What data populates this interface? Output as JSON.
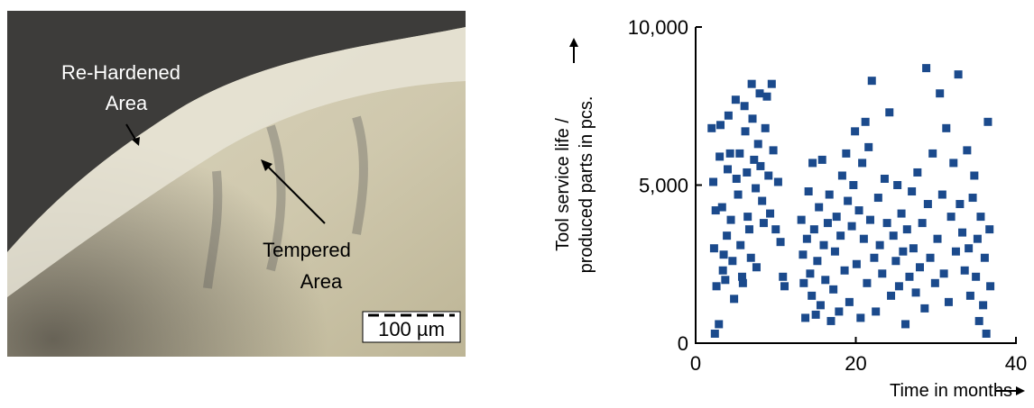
{
  "micrograph": {
    "labels": [
      "Re-Hardened",
      "Area",
      "Tempered",
      "Area"
    ],
    "scale_bar": "100 µm"
  },
  "chart_data": {
    "type": "scatter",
    "color": "#1b4a8c",
    "xlabel": "Time in months",
    "ylabel": [
      "Tool service life /",
      "produced parts in pcs."
    ],
    "xlim": [
      0,
      40
    ],
    "xticks": [
      0,
      20,
      40
    ],
    "ylim": [
      0,
      10000
    ],
    "yticks": [
      0,
      {
        "value": 5000,
        "label": "5,000"
      },
      {
        "value": 10000,
        "label": "10,000"
      }
    ],
    "x": [
      2.0,
      2.2,
      2.5,
      2.3,
      2.6,
      2.4,
      2.9,
      3.1,
      3.0,
      3.3,
      3.5,
      3.4,
      3.7,
      3.9,
      4.1,
      4.0,
      4.3,
      4.4,
      4.6,
      4.8,
      5.0,
      5.1,
      5.3,
      5.5,
      5.6,
      5.8,
      5.9,
      6.1,
      6.2,
      6.4,
      6.5,
      6.7,
      6.9,
      7.0,
      7.1,
      7.3,
      7.5,
      7.6,
      7.8,
      8.0,
      8.1,
      8.3,
      8.5,
      8.7,
      8.9,
      9.1,
      9.3,
      9.5,
      9.7,
      10.0,
      10.3,
      10.6,
      10.9,
      11.1,
      13.2,
      13.4,
      13.5,
      13.7,
      13.9,
      14.1,
      14.3,
      14.5,
      14.6,
      14.8,
      15.0,
      15.2,
      15.4,
      15.6,
      15.8,
      16.0,
      16.2,
      16.5,
      16.7,
      16.9,
      17.2,
      17.4,
      17.6,
      17.9,
      18.1,
      18.3,
      18.6,
      18.8,
      19.0,
      19.2,
      19.5,
      19.7,
      19.9,
      20.1,
      20.4,
      20.6,
      20.8,
      21.0,
      21.2,
      21.4,
      21.6,
      21.8,
      22.0,
      22.3,
      22.5,
      22.8,
      23.0,
      23.3,
      23.6,
      23.9,
      24.2,
      24.4,
      24.7,
      25.0,
      25.2,
      25.4,
      25.7,
      25.9,
      26.2,
      26.4,
      26.7,
      27.0,
      27.2,
      27.5,
      27.7,
      28.0,
      28.3,
      28.6,
      28.8,
      29.0,
      29.3,
      29.6,
      29.9,
      30.2,
      30.5,
      30.8,
      31.0,
      31.3,
      31.6,
      31.9,
      32.2,
      32.5,
      32.8,
      33.0,
      33.3,
      33.6,
      33.9,
      34.1,
      34.3,
      34.6,
      34.8,
      35.0,
      35.2,
      35.4,
      35.6,
      35.9,
      36.1,
      36.3,
      36.5,
      36.7,
      36.8
    ],
    "values": [
      6800,
      5100,
      4200,
      3000,
      1800,
      300,
      600,
      6900,
      5900,
      4300,
      2800,
      2300,
      2000,
      3400,
      7200,
      5500,
      6000,
      3900,
      2600,
      1400,
      7700,
      5200,
      4700,
      6000,
      3100,
      2100,
      1900,
      7500,
      6700,
      5400,
      4000,
      3600,
      2700,
      8200,
      7100,
      5800,
      4900,
      2400,
      6300,
      7900,
      5600,
      4500,
      3800,
      6800,
      7800,
      5300,
      4100,
      8200,
      6100,
      3600,
      5100,
      3200,
      2100,
      1800,
      3900,
      2800,
      1900,
      800,
      3300,
      4800,
      2200,
      1500,
      5700,
      3600,
      900,
      2600,
      4300,
      1200,
      5800,
      3100,
      2000,
      3800,
      4700,
      700,
      1700,
      2900,
      4000,
      1000,
      3400,
      5300,
      2300,
      6000,
      4500,
      1300,
      3700,
      5000,
      6700,
      2500,
      4200,
      800,
      5700,
      3300,
      7000,
      1900,
      6200,
      3900,
      8300,
      2700,
      1000,
      4600,
      3100,
      2200,
      5200,
      3800,
      7300,
      1500,
      3400,
      2600,
      5000,
      1800,
      4100,
      2900,
      600,
      3600,
      2100,
      4800,
      3000,
      1600,
      5400,
      2400,
      3800,
      1100,
      8700,
      4400,
      2700,
      6000,
      1900,
      3300,
      7900,
      4700,
      2200,
      6800,
      1300,
      4000,
      5700,
      2900,
      8500,
      4400,
      3500,
      2300,
      6100,
      3000,
      1500,
      4600,
      5300,
      2100,
      3300,
      700,
      4000,
      1200,
      2700,
      300,
      7000,
      3600,
      1800
    ]
  }
}
